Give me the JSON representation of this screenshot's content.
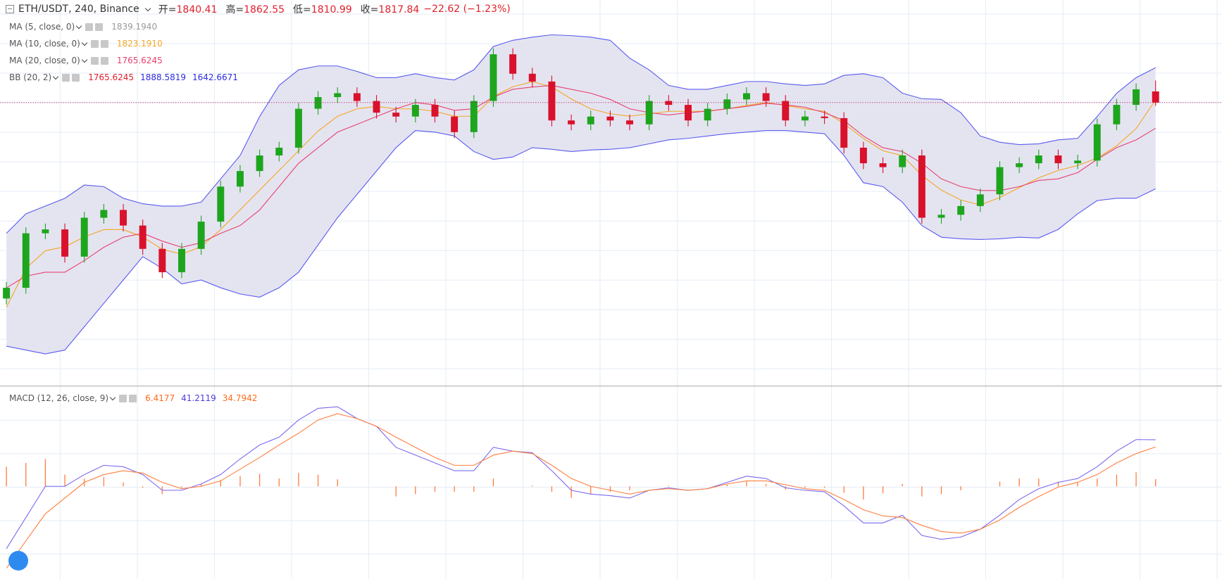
{
  "header": {
    "symbol": "ETH/USDT, 240, Binance",
    "ohlc": [
      {
        "label": "开=",
        "value": "1840.41"
      },
      {
        "label": "高=",
        "value": "1862.55"
      },
      {
        "label": "低=",
        "value": "1810.99"
      },
      {
        "label": "收=",
        "value": "1817.84"
      }
    ],
    "change": "−22.62 (−1.23%)"
  },
  "chart_data": [
    {
      "type": "candlestick",
      "ylim": [
        1244,
        2026
      ],
      "up_color": "#1ea51e",
      "down_color": "#d9112b",
      "price_line_color": "#c2185b",
      "band_fill": "#e4e4f1",
      "open": [
        1420,
        1441.8,
        1552.4,
        1560.3,
        1505.0,
        1584.0,
        1599.8,
        1568.2,
        1520.8,
        1473.4,
        1520.8,
        1576.1,
        1647.2,
        1678.8,
        1710.4,
        1726.2,
        1805.2,
        1828.9,
        1836.8,
        1821.0,
        1797.3,
        1789.4,
        1813.1,
        1789.4,
        1757.8,
        1821.0,
        1915.8,
        1876.3,
        1860.5,
        1781.5,
        1773.6,
        1789.4,
        1781.5,
        1773.6,
        1821.0,
        1813.1,
        1781.5,
        1805.2,
        1824.2,
        1836.8,
        1821.0,
        1781.5,
        1789.4,
        1786.2,
        1726.2,
        1694.6,
        1686.7,
        1710.4,
        1584.0,
        1590.0,
        1607.7,
        1631.4,
        1686.7,
        1694.6,
        1710.4,
        1694.6,
        1700.0,
        1773.6,
        1813.1,
        1840.41
      ],
      "high": [
        1453.8,
        1564.4,
        1572.3,
        1572.3,
        1596.0,
        1611.8,
        1611.8,
        1580.2,
        1532.8,
        1532.8,
        1588.1,
        1659.2,
        1690.8,
        1722.4,
        1738.2,
        1817.2,
        1840.9,
        1848.8,
        1848.8,
        1833.0,
        1809.3,
        1825.1,
        1825.1,
        1801.4,
        1833.0,
        1927.8,
        1927.8,
        1888.3,
        1872.5,
        1793.5,
        1801.4,
        1801.4,
        1793.5,
        1833.0,
        1833.0,
        1825.1,
        1817.2,
        1836.2,
        1848.8,
        1848.8,
        1833.0,
        1801.4,
        1801.4,
        1798.2,
        1738.2,
        1706.6,
        1722.4,
        1722.4,
        1602.0,
        1619.7,
        1643.4,
        1698.7,
        1706.6,
        1722.4,
        1722.4,
        1712.0,
        1785.6,
        1825.1,
        1856.7,
        1862.55
      ],
      "low": [
        1408.0,
        1429.8,
        1540.4,
        1493.0,
        1493.0,
        1572.0,
        1556.2,
        1508.8,
        1461.4,
        1461.4,
        1508.8,
        1564.1,
        1635.2,
        1666.8,
        1698.4,
        1714.2,
        1793.2,
        1816.9,
        1809.0,
        1785.3,
        1777.4,
        1777.4,
        1777.4,
        1745.8,
        1745.8,
        1809.0,
        1864.3,
        1848.5,
        1769.5,
        1761.6,
        1761.6,
        1769.5,
        1761.6,
        1761.6,
        1801.1,
        1769.5,
        1769.5,
        1793.2,
        1812.2,
        1809.0,
        1769.5,
        1769.5,
        1774.2,
        1714.2,
        1682.6,
        1674.7,
        1674.7,
        1572.0,
        1572.0,
        1578.0,
        1595.7,
        1619.4,
        1674.7,
        1682.6,
        1682.6,
        1682.6,
        1688.0,
        1761.6,
        1801.1,
        1810.99
      ],
      "close": [
        1441.8,
        1552.4,
        1560.3,
        1505.0,
        1584.0,
        1599.8,
        1568.2,
        1520.8,
        1473.4,
        1520.8,
        1576.1,
        1647.2,
        1678.8,
        1710.4,
        1726.2,
        1805.2,
        1828.9,
        1836.8,
        1821.0,
        1797.3,
        1789.4,
        1813.1,
        1789.4,
        1757.8,
        1821.0,
        1915.8,
        1876.3,
        1860.5,
        1781.5,
        1773.6,
        1789.4,
        1781.5,
        1773.6,
        1821.0,
        1813.1,
        1781.5,
        1805.2,
        1824.2,
        1836.8,
        1821.0,
        1781.5,
        1789.4,
        1786.2,
        1726.2,
        1694.6,
        1686.7,
        1710.4,
        1584.0,
        1590.0,
        1607.7,
        1631.4,
        1686.7,
        1694.6,
        1710.4,
        1694.6,
        1700.0,
        1773.6,
        1813.1,
        1844.7,
        1817.84
      ],
      "lines": [
        {
          "color": "#f5a623",
          "values": [
            1402,
            1481,
            1517,
            1525,
            1545,
            1560,
            1560,
            1545,
            1520,
            1510,
            1525,
            1560,
            1600,
            1640,
            1680,
            1720,
            1760,
            1790,
            1805,
            1810,
            1805,
            1805,
            1800,
            1790,
            1790,
            1830,
            1850,
            1860,
            1850,
            1825,
            1805,
            1795,
            1790,
            1795,
            1800,
            1800,
            1800,
            1805,
            1812,
            1818,
            1812,
            1805,
            1800,
            1775,
            1745,
            1720,
            1710,
            1670,
            1640,
            1620,
            1610,
            1625,
            1645,
            1665,
            1680,
            1690,
            1705,
            1730,
            1765,
            1823.191
          ]
        },
        {
          "color": "#e8416e",
          "values": [
            1441.8,
            1465.5,
            1473.4,
            1473.4,
            1497.1,
            1524.0,
            1544.5,
            1552.4,
            1536.6,
            1524.0,
            1533.4,
            1552.4,
            1568.2,
            1599.8,
            1647.2,
            1694.6,
            1726.2,
            1757.8,
            1773.6,
            1789.4,
            1805.2,
            1817.8,
            1813.1,
            1802.0,
            1805.2,
            1828.9,
            1844.7,
            1849.4,
            1852.6,
            1844.7,
            1836.8,
            1824.2,
            1805.2,
            1797.3,
            1792.6,
            1797.3,
            1800.5,
            1805.2,
            1809.9,
            1816.3,
            1813.1,
            1808.4,
            1797.3,
            1781.5,
            1749.9,
            1726.2,
            1718.3,
            1694.6,
            1663.0,
            1647.2,
            1639.3,
            1639.3,
            1647.2,
            1659.8,
            1663.0,
            1675.6,
            1702.5,
            1726.2,
            1742.0,
            1765.6245
          ]
        },
        {
          "color": "#5a5af0",
          "values": [
            1552.4,
            1591.9,
            1607.7,
            1623.5,
            1650.4,
            1647.2,
            1623.5,
            1612.4,
            1607.7,
            1607.7,
            1615.6,
            1663.0,
            1710.4,
            1789.4,
            1852.6,
            1884.2,
            1892.1,
            1892.1,
            1881.0,
            1868.4,
            1868.4,
            1876.3,
            1868.4,
            1863.7,
            1884.2,
            1931.6,
            1944.2,
            1950.6,
            1955.3,
            1953.7,
            1950.6,
            1944.2,
            1907.9,
            1884.2,
            1852.6,
            1844.7,
            1844.7,
            1852.6,
            1860.5,
            1860.5,
            1855.8,
            1852.6,
            1855.8,
            1873.1,
            1876.3,
            1868.4,
            1836.8,
            1825.7,
            1824.2,
            1797.3,
            1749.9,
            1737.3,
            1732.5,
            1734.1,
            1742.0,
            1745.2,
            1789.4,
            1836.8,
            1868.4,
            1888.5819
          ]
        },
        {
          "color": "#5a5af0",
          "values": [
            1323.3,
            1315.4,
            1307.5,
            1315.4,
            1362.8,
            1410.2,
            1457.6,
            1505.0,
            1481.3,
            1449.7,
            1457.6,
            1441.8,
            1429.2,
            1422.8,
            1441.8,
            1473.4,
            1528.7,
            1584.0,
            1631.4,
            1678.8,
            1726.2,
            1761.0,
            1757.8,
            1749.9,
            1718.3,
            1702.5,
            1707.2,
            1726.2,
            1723.0,
            1718.3,
            1721.5,
            1723.0,
            1726.2,
            1734.1,
            1742.0,
            1745.2,
            1749.9,
            1754.6,
            1757.8,
            1761.0,
            1761.0,
            1757.8,
            1754.6,
            1710.4,
            1655.1,
            1647.2,
            1615.6,
            1568.2,
            1544.5,
            1541.3,
            1539.8,
            1541.3,
            1544.5,
            1542.9,
            1560.3,
            1591.9,
            1618.8,
            1623.5,
            1623.5,
            1642.6671
          ]
        }
      ],
      "legend": [
        {
          "name": "MA (5, close, 0)",
          "readouts": [
            {
              "text": "1839.1940",
              "color": "#999999"
            }
          ]
        },
        {
          "name": "MA (10, close, 0)",
          "readouts": [
            {
              "text": "1823.1910",
              "color": "#f5a623"
            }
          ]
        },
        {
          "name": "MA (20, close, 0)",
          "readouts": [
            {
              "text": "1765.6245",
              "color": "#e8416e"
            }
          ]
        },
        {
          "name": "BB (20, 2)",
          "readouts": [
            {
              "text": "1765.6245",
              "color": "#e0202c"
            },
            {
              "text": "1888.5819",
              "color": "#2b2be0"
            },
            {
              "text": "1642.6671",
              "color": "#2b2be0"
            }
          ]
        }
      ]
    },
    {
      "type": "macd",
      "ylim": [
        -82,
        86
      ],
      "series": [
        {
          "color": "#7b68ee",
          "values": [
            -55.2,
            -27.6,
            0,
            0,
            10.4,
            18.6,
            17.3,
            10.4,
            -3.5,
            -3.5,
            2.1,
            10.4,
            24.2,
            36.6,
            43.5,
            58.7,
            69.0,
            70.4,
            60.0,
            53.1,
            34.5,
            27.6,
            20.7,
            13.8,
            13.8,
            34.5,
            31.1,
            29.7,
            13.8,
            -3.5,
            -6.9,
            -8.3,
            -10.4,
            -3.5,
            -1.4,
            -3.5,
            -2.1,
            3.5,
            9.0,
            6.9,
            -1.4,
            -3.5,
            -4.8,
            -17.3,
            -32.4,
            -32.4,
            -25.5,
            -43.5,
            -46.9,
            -44.9,
            -38.0,
            -25.5,
            -11.7,
            -2.1,
            3.5,
            6.9,
            17.3,
            31.1,
            41.4,
            41.2119
          ]
        },
        {
          "color": "#ff7f3f",
          "values": [
            -72.5,
            -48.3,
            -24.2,
            -10.4,
            3.5,
            10.4,
            13.8,
            11.7,
            3.5,
            -2.1,
            0,
            4.8,
            15.2,
            25.5,
            36.6,
            46.9,
            58.7,
            64.2,
            60.0,
            53.1,
            43.5,
            34.5,
            25.5,
            18.6,
            18.6,
            27.6,
            31.1,
            29.0,
            18.6,
            6.9,
            0,
            -3.5,
            -6.9,
            -3.5,
            -2.1,
            -3.5,
            -2.1,
            2.1,
            4.8,
            4.8,
            1.4,
            -2.1,
            -3.5,
            -11.7,
            -20.7,
            -26.2,
            -27.6,
            -34.5,
            -40.0,
            -41.4,
            -38.0,
            -29.7,
            -18.6,
            -9.0,
            -0.7,
            3.5,
            10.4,
            20.7,
            29.0,
            34.7942
          ]
        }
      ],
      "histogram": {
        "color": "#ff7f3f",
        "values": [
          17.3,
          20.7,
          24.2,
          10.4,
          6.9,
          8.2,
          3.5,
          -1.3,
          -7.0,
          -1.4,
          2.1,
          5.6,
          9.0,
          11.1,
          6.9,
          11.8,
          10.3,
          6.2,
          0,
          0,
          -9.0,
          -6.9,
          -4.8,
          -4.8,
          -4.8,
          6.9,
          0,
          0.7,
          -4.8,
          -10.4,
          -6.9,
          -4.8,
          -3.5,
          0,
          0.7,
          0,
          0,
          1.4,
          4.2,
          2.1,
          -2.8,
          -1.4,
          -1.3,
          -5.6,
          -11.7,
          -6.2,
          2.1,
          -9.0,
          -6.9,
          -3.5,
          0,
          4.2,
          6.9,
          6.9,
          4.2,
          3.4,
          6.9,
          10.4,
          12.4,
          6.4177
        ]
      },
      "legend": [
        {
          "name": "MACD (12, 26, close, 9)",
          "readouts": [
            {
              "text": "6.4177",
              "color": "#ff6a1a"
            },
            {
              "text": "41.2119",
              "color": "#4b3be0"
            },
            {
              "text": "34.7942",
              "color": "#ff6a1a"
            }
          ]
        }
      ]
    }
  ]
}
